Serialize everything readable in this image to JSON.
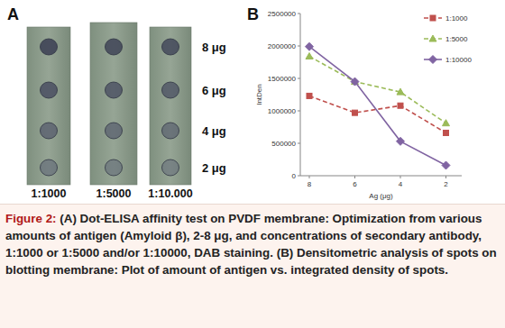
{
  "panel_a": {
    "label": "A",
    "amounts": [
      "8 μg",
      "6 μg",
      "4 μg",
      "2 μg"
    ],
    "dilutions": [
      "1:1000",
      "1:5000",
      "1:10.000"
    ]
  },
  "panel_b": {
    "label": "B"
  },
  "chart_data": {
    "type": "line",
    "x_label": "Ag (μg)",
    "y_label": "IntDen",
    "categories": [
      "8",
      "6",
      "4",
      "2"
    ],
    "series": [
      {
        "name": "1:1000",
        "color": "#c0504d",
        "marker": "square",
        "line_style": "dashed",
        "values": [
          1230000,
          970000,
          1080000,
          660000
        ]
      },
      {
        "name": "1:5000",
        "color": "#9bbb59",
        "marker": "triangle",
        "line_style": "dashed",
        "values": [
          1840000,
          1450000,
          1290000,
          810000
        ]
      },
      {
        "name": "1:10000",
        "color": "#8064a2",
        "marker": "diamond",
        "line_style": "solid",
        "values": [
          1990000,
          1450000,
          530000,
          160000
        ]
      }
    ],
    "ylim": [
      0,
      2500000
    ],
    "yticks": [
      0,
      500000,
      1000000,
      1500000,
      2000000,
      2500000
    ],
    "grid": false,
    "legend": "top-right"
  },
  "caption": {
    "label": "Figure 2:",
    "text": "(A) Dot-ELISA affinity test on PVDF membrane: Optimization from various amounts of antigen (Amyloid β), 2-8 μg, and concentrations of secondary antibody, 1:1000 or 1:5000 and/or 1:10000, DAB staining. (B) Densitometric analysis of spots on blotting membrane: Plot of amount of antigen vs. integrated density of spots."
  }
}
